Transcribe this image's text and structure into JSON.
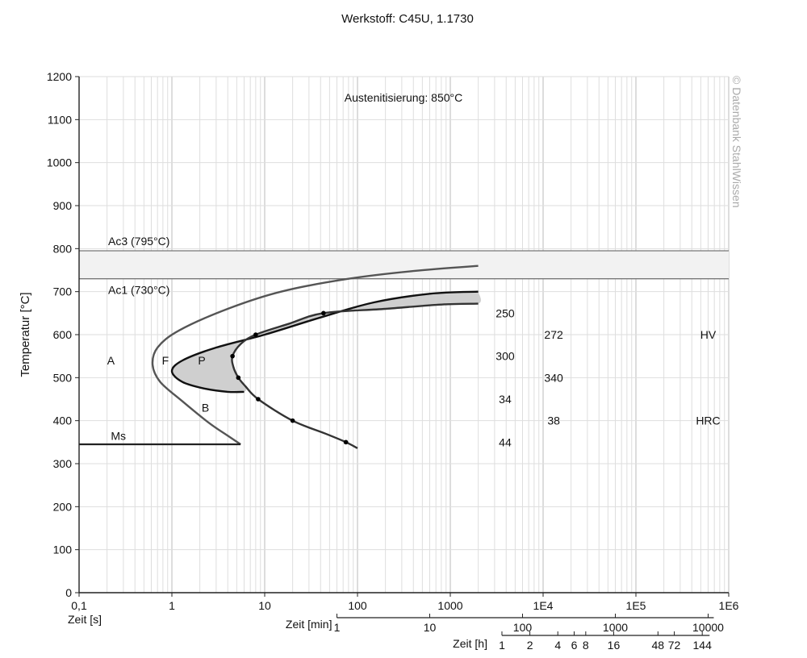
{
  "chart_data": {
    "type": "line",
    "title": "Werkstoff: C45U, 1.1730",
    "annotation_top": "Austenitisierung: 850°C",
    "watermark": "© Datenbank StahlWissen",
    "ylabel": "Temperatur [°C]",
    "x_scale": "log",
    "xlim_s": [
      0.1,
      1000000
    ],
    "ylim": [
      0,
      1200
    ],
    "grid": true,
    "y_ticks": [
      0,
      100,
      200,
      300,
      400,
      500,
      600,
      700,
      800,
      900,
      1000,
      1100,
      1200
    ],
    "axes": {
      "seconds": {
        "label": "Zeit [s]",
        "ticks": [
          {
            "value": 0.1,
            "label": "0,1"
          },
          {
            "value": 1,
            "label": "1"
          },
          {
            "value": 10,
            "label": "10"
          },
          {
            "value": 100,
            "label": "100"
          },
          {
            "value": 1000,
            "label": "1000"
          },
          {
            "value": 10000,
            "label": "1E4"
          },
          {
            "value": 100000,
            "label": "1E5"
          },
          {
            "value": 1000000,
            "label": "1E6"
          }
        ]
      },
      "minutes": {
        "label": "Zeit [min]",
        "ticks": [
          {
            "value": 1,
            "label": "1"
          },
          {
            "value": 10,
            "label": "10"
          },
          {
            "value": 100,
            "label": "100"
          },
          {
            "value": 1000,
            "label": "1000"
          },
          {
            "value": 10000,
            "label": "10000"
          }
        ]
      },
      "hours": {
        "label": "Zeit [h]",
        "ticks": [
          {
            "value": 1,
            "label": "1"
          },
          {
            "value": 2,
            "label": "2"
          },
          {
            "value": 4,
            "label": "4"
          },
          {
            "value": 6,
            "label": "6"
          },
          {
            "value": 8,
            "label": "8"
          },
          {
            "value": 16,
            "label": "16"
          },
          {
            "value": 48,
            "label": "48"
          },
          {
            "value": 72,
            "label": "72"
          },
          {
            "value": 144,
            "label": "144"
          }
        ]
      }
    },
    "reference_lines": [
      {
        "label": "Ac3 (795°C)",
        "temperature": 795
      },
      {
        "label": "Ac1 (730°C)",
        "temperature": 730
      }
    ],
    "ms_line": {
      "label": "Ms",
      "temperature": 345,
      "t_end_s": 5.5
    },
    "series": [
      {
        "role": "ferrite-start",
        "points": [
          [
            2000,
            760
          ],
          [
            400,
            748
          ],
          [
            80,
            730
          ],
          [
            15,
            700
          ],
          [
            4,
            660
          ],
          [
            1.2,
            610
          ],
          [
            0.7,
            570
          ],
          [
            0.62,
            530
          ],
          [
            0.75,
            490
          ],
          [
            1.3,
            445
          ],
          [
            2.5,
            395
          ],
          [
            4.0,
            365
          ],
          [
            5.5,
            345
          ]
        ]
      },
      {
        "role": "pearlite-start",
        "points": [
          [
            2000,
            700
          ],
          [
            600,
            695
          ],
          [
            150,
            675
          ],
          [
            40,
            640
          ],
          [
            10,
            600
          ],
          [
            3,
            570
          ],
          [
            1.3,
            540
          ],
          [
            1.0,
            515
          ],
          [
            1.3,
            490
          ],
          [
            2.2,
            475
          ],
          [
            4.0,
            467
          ],
          [
            6.0,
            467
          ]
        ]
      },
      {
        "role": "pearlite-end",
        "points": [
          [
            2000,
            672
          ],
          [
            800,
            670
          ],
          [
            200,
            660
          ],
          [
            43,
            650
          ],
          [
            18,
            625
          ],
          [
            8.0,
            600
          ],
          [
            5.5,
            578
          ],
          [
            4.5,
            550
          ],
          [
            4.6,
            525
          ],
          [
            5.2,
            500
          ],
          [
            6.2,
            480
          ],
          [
            8.5,
            450
          ],
          [
            20,
            400
          ],
          [
            45,
            370
          ],
          [
            75,
            350
          ],
          [
            100,
            336
          ]
        ],
        "markers": [
          [
            43,
            650
          ],
          [
            8.0,
            600
          ],
          [
            4.5,
            550
          ],
          [
            5.2,
            500
          ],
          [
            8.5,
            450
          ],
          [
            20,
            400
          ],
          [
            75,
            350
          ]
        ]
      }
    ],
    "region_labels": [
      {
        "text": "A",
        "t": 0.22,
        "temp": 540
      },
      {
        "text": "F",
        "t": 0.85,
        "temp": 540
      },
      {
        "text": "P",
        "t": 2.1,
        "temp": 540
      },
      {
        "text": "B",
        "t": 2.3,
        "temp": 430
      },
      {
        "text": "Ms",
        "t": 0.22,
        "temp": 365
      }
    ],
    "hardness": {
      "hv_label": "HV",
      "hrc_label": "HRC",
      "hv_values": [
        {
          "text": "250",
          "t": 3900,
          "temp": 650
        },
        {
          "text": "272",
          "t": 13000,
          "temp": 600
        },
        {
          "text": "300",
          "t": 3900,
          "temp": 550
        },
        {
          "text": "340",
          "t": 13000,
          "temp": 500
        }
      ],
      "hrc_values": [
        {
          "text": "34",
          "t": 3900,
          "temp": 450
        },
        {
          "text": "38",
          "t": 13000,
          "temp": 400
        },
        {
          "text": "44",
          "t": 3900,
          "temp": 350
        }
      ],
      "hv_label_pos": {
        "t": 600000,
        "temp": 600
      },
      "hrc_label_pos": {
        "t": 600000,
        "temp": 400
      }
    }
  }
}
